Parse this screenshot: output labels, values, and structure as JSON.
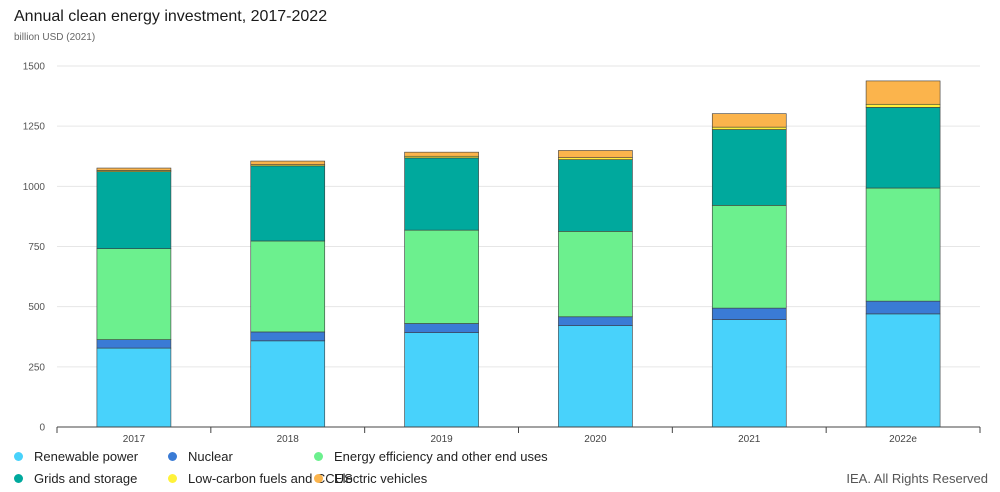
{
  "header": {
    "title": "Annual clean energy investment, 2017-2022",
    "subtitle": "billion USD (2021)"
  },
  "credit": "IEA. All Rights Reserved",
  "chart_data": {
    "type": "bar",
    "stacked": true,
    "title": "Annual clean energy investment, 2017-2022",
    "subtitle": "billion USD (2021)",
    "xlabel": "",
    "ylabel": "",
    "ylim": [
      0,
      1500
    ],
    "yticks": [
      0,
      250,
      500,
      750,
      1000,
      1250,
      1500
    ],
    "grid": true,
    "legend_position": "bottom",
    "categories": [
      "2017",
      "2018",
      "2019",
      "2020",
      "2021",
      "2022e"
    ],
    "series": [
      {
        "name": "Renewable power",
        "color": "#48d2fb",
        "values": [
          328,
          358,
          392,
          421,
          446,
          470
        ]
      },
      {
        "name": "Nuclear",
        "color": "#3a7bd5",
        "values": [
          35,
          37,
          38,
          37,
          48,
          53
        ]
      },
      {
        "name": "Energy efficiency and other end uses",
        "color": "#6cf08e",
        "values": [
          378,
          378,
          388,
          355,
          427,
          470
        ]
      },
      {
        "name": "Grids and storage",
        "color": "#00a99d",
        "values": [
          320,
          312,
          300,
          298,
          315,
          335
        ]
      },
      {
        "name": "Low-carbon fuels and CCUS",
        "color": "#fff23a",
        "values": [
          5,
          5,
          7,
          8,
          10,
          13
        ]
      },
      {
        "name": "Electric vehicles",
        "color": "#fbb44c",
        "values": [
          10,
          15,
          17,
          30,
          56,
          97
        ]
      }
    ]
  }
}
